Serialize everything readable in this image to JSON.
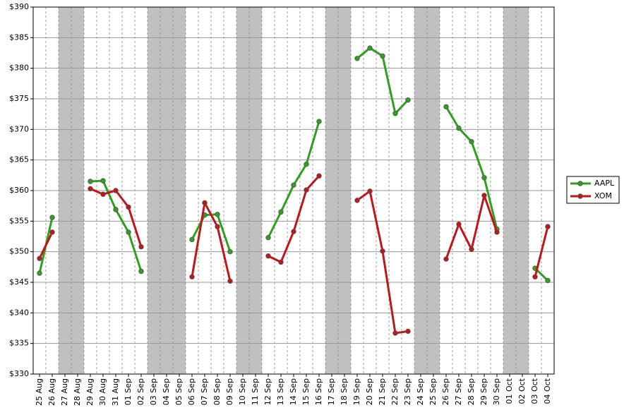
{
  "chart_data": {
    "type": "line",
    "categories": [
      "25 Aug",
      "26 Aug",
      "27 Aug",
      "28 Aug",
      "29 Aug",
      "30 Aug",
      "31 Aug",
      "01 Sep",
      "02 Sep",
      "03 Sep",
      "04 Sep",
      "05 Sep",
      "06 Sep",
      "07 Sep",
      "08 Sep",
      "09 Sep",
      "10 Sep",
      "11 Sep",
      "12 Sep",
      "13 Sep",
      "14 Sep",
      "15 Sep",
      "16 Sep",
      "17 Sep",
      "18 Sep",
      "19 Sep",
      "20 Sep",
      "21 Sep",
      "22 Sep",
      "23 Sep",
      "24 Sep",
      "25 Sep",
      "26 Sep",
      "27 Sep",
      "28 Sep",
      "29 Sep",
      "30 Sep",
      "01 Oct",
      "02 Oct",
      "03 Oct",
      "04 Oct"
    ],
    "series": [
      {
        "name": "AAPL",
        "color": "#2ea01e",
        "values": [
          346.5,
          355.6,
          null,
          null,
          361.5,
          361.6,
          356.9,
          353.2,
          346.8,
          null,
          null,
          null,
          352.0,
          356.0,
          356.1,
          350.0,
          null,
          null,
          352.3,
          356.5,
          360.9,
          364.3,
          371.3,
          null,
          null,
          381.6,
          383.3,
          382.0,
          372.6,
          374.8,
          null,
          null,
          373.7,
          370.2,
          368.0,
          362.1,
          353.7,
          null,
          null,
          347.3,
          345.3
        ]
      },
      {
        "name": "XOM",
        "color": "#c0161a",
        "values": [
          348.9,
          353.2,
          null,
          null,
          360.3,
          359.4,
          360.0,
          357.3,
          350.8,
          null,
          null,
          null,
          345.9,
          358.0,
          354.1,
          345.2,
          null,
          null,
          349.3,
          348.3,
          353.3,
          360.1,
          362.4,
          null,
          null,
          358.4,
          359.9,
          350.1,
          336.7,
          337.0,
          null,
          null,
          348.8,
          354.5,
          350.4,
          359.2,
          353.2,
          null,
          null,
          345.9,
          354.1
        ]
      }
    ],
    "ylim": [
      330,
      390
    ],
    "yticks": [
      {
        "value": 330,
        "label": "$330"
      },
      {
        "value": 335,
        "label": "$335"
      },
      {
        "value": 340,
        "label": "$340"
      },
      {
        "value": 345,
        "label": "$345"
      },
      {
        "value": 350,
        "label": "$350"
      },
      {
        "value": 355,
        "label": "$355"
      },
      {
        "value": 360,
        "label": "$360"
      },
      {
        "value": 365,
        "label": "$365"
      },
      {
        "value": 370,
        "label": "$370"
      },
      {
        "value": 375,
        "label": "$375"
      },
      {
        "value": 380,
        "label": "$380"
      },
      {
        "value": 385,
        "label": "$385"
      },
      {
        "value": 390,
        "label": "$390"
      }
    ],
    "grid": true,
    "legend": "right"
  }
}
